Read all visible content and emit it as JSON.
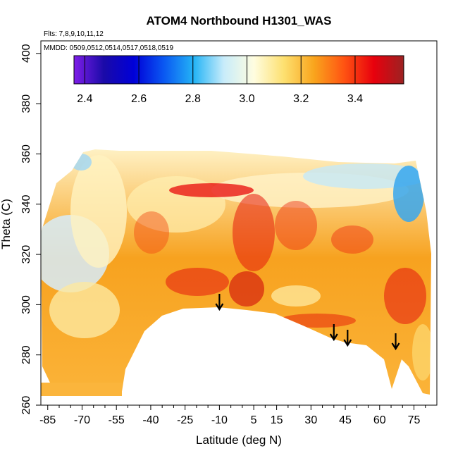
{
  "chart_data": {
    "type": "heatmap",
    "title": "ATOM4 Northbound H1301_WAS",
    "flights_text": "Flts: 7,8,9,10,11,12",
    "dates_text": "MMDD: 0509,0512,0514,0517,0518,0519",
    "xlabel": "Latitude (deg N)",
    "ylabel": "Theta (C)",
    "xlim": [
      -88,
      85
    ],
    "ylim": [
      260,
      405
    ],
    "x_ticks": [
      -85,
      -70,
      -55,
      -40,
      -25,
      -10,
      5,
      15,
      30,
      45,
      60,
      75
    ],
    "x_tick_labels": [
      "-85",
      "-70",
      "-55",
      "-40",
      "-25",
      "-10",
      "5",
      "15",
      "30",
      "45",
      "60",
      "75"
    ],
    "y_ticks": [
      260,
      280,
      300,
      320,
      340,
      360,
      380,
      400
    ],
    "y_tick_labels": [
      "260",
      "280",
      "300",
      "320",
      "340",
      "360",
      "380",
      "400"
    ],
    "colorbar": {
      "range": [
        2.36,
        3.58
      ],
      "ticks": [
        2.4,
        2.6,
        2.8,
        3.0,
        3.2,
        3.4
      ],
      "tick_labels": [
        "2.4",
        "2.6",
        "2.8",
        "3.0",
        "3.2",
        "3.4"
      ],
      "colors": [
        "#7e1ee8",
        "#1a0aa8",
        "#0000d8",
        "#0a58f2",
        "#24b4f6",
        "#c8ecfa",
        "#fffde0",
        "#fde070",
        "#f9a51d",
        "#ff5412",
        "#e8000d",
        "#9c2222"
      ]
    },
    "arrows_lat": [
      -10,
      40,
      46,
      67
    ],
    "grid": false,
    "legend": "colorbar-top"
  }
}
